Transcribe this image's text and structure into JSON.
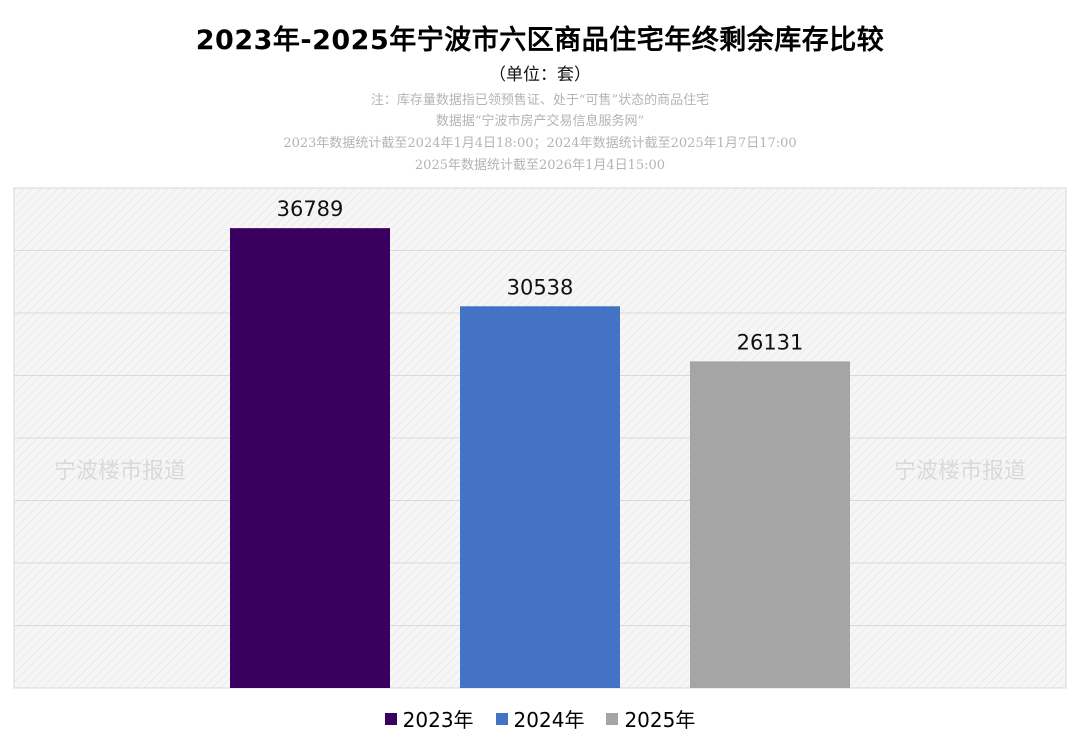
{
  "title": "2023年-2025年宁波市六区商品住宅年终剩余库存比较",
  "unit": "（单位：套）",
  "notes": [
    "注：库存量数据指已领预售证、处于“可售”状态的商品住宅",
    "数据据“宁波市房产交易信息服务网”",
    "2023年数据统计截至2024年1月4日18:00；2024年数据统计截至2025年1月7日17:00",
    "2025年数据统计截至2026年1月4日15:00"
  ],
  "watermark": "宁波楼市报道",
  "colors": {
    "y2023": "#3a0060",
    "y2024": "#4472c4",
    "y2025": "#a5a5a5"
  },
  "chart_data": {
    "type": "bar",
    "categories": [
      "2023年",
      "2024年",
      "2025年"
    ],
    "values": [
      36789,
      30538,
      26131
    ],
    "data_labels": [
      "36789",
      "30538",
      "26131"
    ],
    "ylim": [
      0,
      40000
    ],
    "grid": true,
    "legend": "bottom",
    "title": "2023年-2025年宁波市六区商品住宅年终剩余库存比较"
  },
  "legend": [
    {
      "label": "2023年",
      "color": "#3a0060"
    },
    {
      "label": "2024年",
      "color": "#4472c4"
    },
    {
      "label": "2025年",
      "color": "#a5a5a5"
    }
  ]
}
